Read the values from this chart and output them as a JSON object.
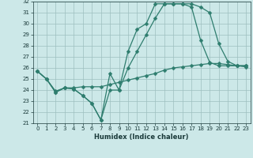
{
  "xlabel": "Humidex (Indice chaleur)",
  "xlim": [
    -0.5,
    23.5
  ],
  "ylim": [
    21,
    32
  ],
  "yticks": [
    21,
    22,
    23,
    24,
    25,
    26,
    27,
    28,
    29,
    30,
    31,
    32
  ],
  "xticks": [
    0,
    1,
    2,
    3,
    4,
    5,
    6,
    7,
    8,
    9,
    10,
    11,
    12,
    13,
    14,
    15,
    16,
    17,
    18,
    19,
    20,
    21,
    22,
    23
  ],
  "background_color": "#cce8e8",
  "grid_color": "#9dbfbf",
  "line_color": "#2e7d6e",
  "line1_x": [
    0,
    1,
    2,
    3,
    4,
    5,
    6,
    7,
    8,
    9,
    10,
    11,
    12,
    13,
    14,
    15,
    16,
    17,
    18,
    19,
    20,
    21,
    22,
    23
  ],
  "line1_y": [
    25.7,
    25.0,
    23.8,
    24.2,
    24.1,
    23.5,
    22.8,
    21.3,
    25.5,
    24.0,
    27.5,
    29.5,
    30.0,
    31.8,
    31.8,
    31.8,
    31.8,
    31.8,
    31.5,
    31.0,
    28.2,
    26.6,
    26.2,
    26.2
  ],
  "line2_x": [
    0,
    1,
    2,
    3,
    4,
    5,
    6,
    7,
    8,
    9,
    10,
    11,
    12,
    13,
    14,
    15,
    16,
    17,
    18,
    19,
    20,
    21,
    22,
    23
  ],
  "line2_y": [
    25.7,
    25.0,
    23.8,
    24.2,
    24.1,
    23.5,
    22.8,
    21.3,
    24.0,
    24.0,
    26.0,
    27.5,
    29.0,
    30.5,
    31.8,
    31.8,
    31.8,
    31.5,
    28.5,
    26.5,
    26.2,
    26.2,
    26.2,
    26.2
  ],
  "line3_x": [
    0,
    1,
    2,
    3,
    4,
    5,
    6,
    7,
    8,
    9,
    10,
    11,
    12,
    13,
    14,
    15,
    16,
    17,
    18,
    19,
    20,
    21,
    22,
    23
  ],
  "line3_y": [
    25.7,
    25.0,
    23.9,
    24.2,
    24.2,
    24.3,
    24.3,
    24.3,
    24.5,
    24.7,
    24.9,
    25.1,
    25.3,
    25.5,
    25.8,
    26.0,
    26.1,
    26.2,
    26.3,
    26.4,
    26.4,
    26.3,
    26.2,
    26.1
  ]
}
